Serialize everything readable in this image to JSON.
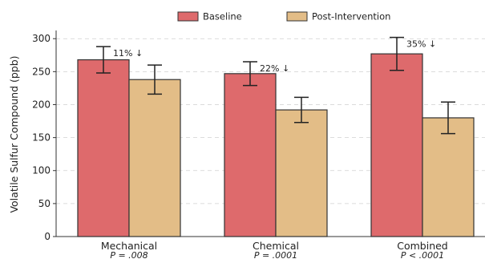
{
  "chart_data": {
    "type": "bar",
    "categories": [
      "Mechanical",
      "Chemical",
      "Combined"
    ],
    "category_notes": [
      "P = .008",
      "P = .0001",
      "P < .0001"
    ],
    "series": [
      {
        "name": "Baseline",
        "values": [
          268,
          247,
          277
        ],
        "errors": [
          20,
          18,
          25
        ],
        "color": "#de6a6c"
      },
      {
        "name": "Post-Intervention",
        "values": [
          238,
          192,
          180
        ],
        "errors": [
          22,
          19,
          24
        ],
        "color": "#e3bd87"
      }
    ],
    "annotations": [
      "11% ↓",
      "22% ↓",
      "35% ↓"
    ],
    "ylabel": "Volatile Sulfur Compound (ppb)",
    "ylim": [
      0,
      310
    ],
    "yticks": [
      0,
      50,
      100,
      150,
      200,
      250,
      300
    ],
    "grid": "horizontal-dashed",
    "legend_position": "top-center",
    "bar_edge_color": "#333333"
  }
}
